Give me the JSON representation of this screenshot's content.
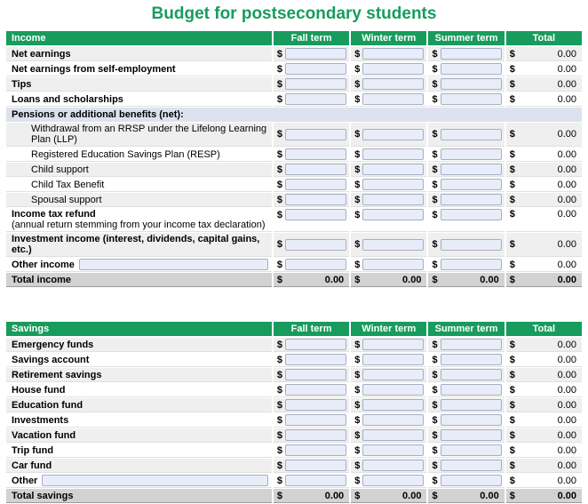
{
  "title": "Budget for postsecondary students",
  "currency": "$",
  "colors": {
    "brand_green": "#189c5d",
    "section_row_bg": "#dce2ee",
    "total_row_bg": "#d2d2d2",
    "alt_row_bg": "#efefef",
    "input_fill": "#e9ecf9"
  },
  "columns": {
    "fall": "Fall term",
    "winter": "Winter term",
    "summer": "Summer term",
    "total": "Total"
  },
  "income": {
    "header": "Income",
    "rows": [
      {
        "label": "Net earnings",
        "total": "0.00"
      },
      {
        "label": "Net earnings from self-employment",
        "total": "0.00"
      },
      {
        "label": "Tips",
        "total": "0.00"
      },
      {
        "label": "Loans and scholarships",
        "total": "0.00"
      },
      {
        "label": "Pensions or additional benefits (net):"
      },
      {
        "label": "Withdrawal from an RRSP under the Lifelong Learning Plan (LLP)",
        "total": "0.00"
      },
      {
        "label": "Registered Education Savings Plan (RESP)",
        "total": "0.00"
      },
      {
        "label": "Child support",
        "total": "0.00"
      },
      {
        "label": "Child Tax Benefit",
        "total": "0.00"
      },
      {
        "label": "Spousal support",
        "total": "0.00"
      },
      {
        "label": "Income tax refund",
        "sublabel": "(annual return stemming from your income tax declaration)",
        "total": "0.00"
      },
      {
        "label": "Investment income (interest, dividends, capital gains, etc.)",
        "total": "0.00"
      },
      {
        "label": "Other income",
        "total": "0.00"
      },
      {
        "label": "Total income",
        "fall": "0.00",
        "winter": "0.00",
        "summer": "0.00",
        "total": "0.00"
      }
    ]
  },
  "savings": {
    "header": "Savings",
    "rows": [
      {
        "label": "Emergency funds",
        "total": "0.00"
      },
      {
        "label": "Savings account",
        "total": "0.00"
      },
      {
        "label": "Retirement savings",
        "total": "0.00"
      },
      {
        "label": "House fund",
        "total": "0.00"
      },
      {
        "label": "Education fund",
        "total": "0.00"
      },
      {
        "label": "Investments",
        "total": "0.00"
      },
      {
        "label": "Vacation fund",
        "total": "0.00"
      },
      {
        "label": "Trip fund",
        "total": "0.00"
      },
      {
        "label": "Car fund",
        "total": "0.00"
      },
      {
        "label": "Other",
        "total": "0.00"
      },
      {
        "label": "Total savings",
        "fall": "0.00",
        "winter": "0.00",
        "summer": "0.00",
        "total": "0.00"
      }
    ]
  }
}
